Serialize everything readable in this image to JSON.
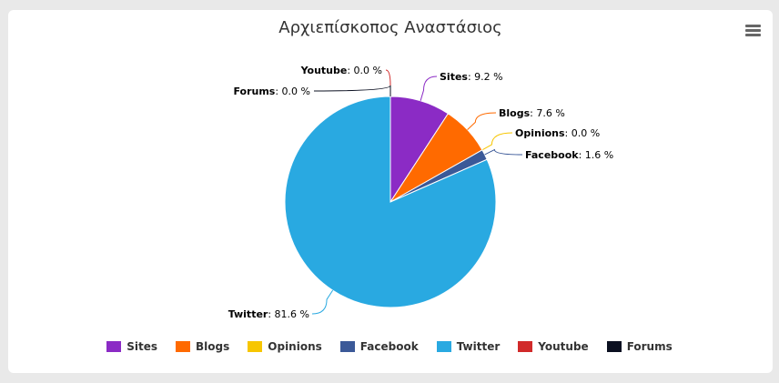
{
  "chart_data": {
    "type": "pie",
    "title": "Αρχιεπίσκοπος Αναστάσιος",
    "label_suffix": " %",
    "series": [
      {
        "name": "Sites",
        "value": 9.2,
        "label": "9.2",
        "color": "#8b2bc5"
      },
      {
        "name": "Blogs",
        "value": 7.6,
        "label": "7.6",
        "color": "#ff6a00"
      },
      {
        "name": "Opinions",
        "value": 0.0,
        "label": "0.0",
        "color": "#f7c600"
      },
      {
        "name": "Facebook",
        "value": 1.6,
        "label": "1.6",
        "color": "#3b5998"
      },
      {
        "name": "Twitter",
        "value": 81.6,
        "label": "81.6",
        "color": "#29a9e1"
      },
      {
        "name": "Youtube",
        "value": 0.0,
        "label": "0.0",
        "color": "#d12a2a"
      },
      {
        "name": "Forums",
        "value": 0.0,
        "label": "0.0",
        "color": "#0b1021"
      }
    ],
    "legend_position": "bottom-center"
  },
  "menu_icon": "hamburger-menu-icon"
}
